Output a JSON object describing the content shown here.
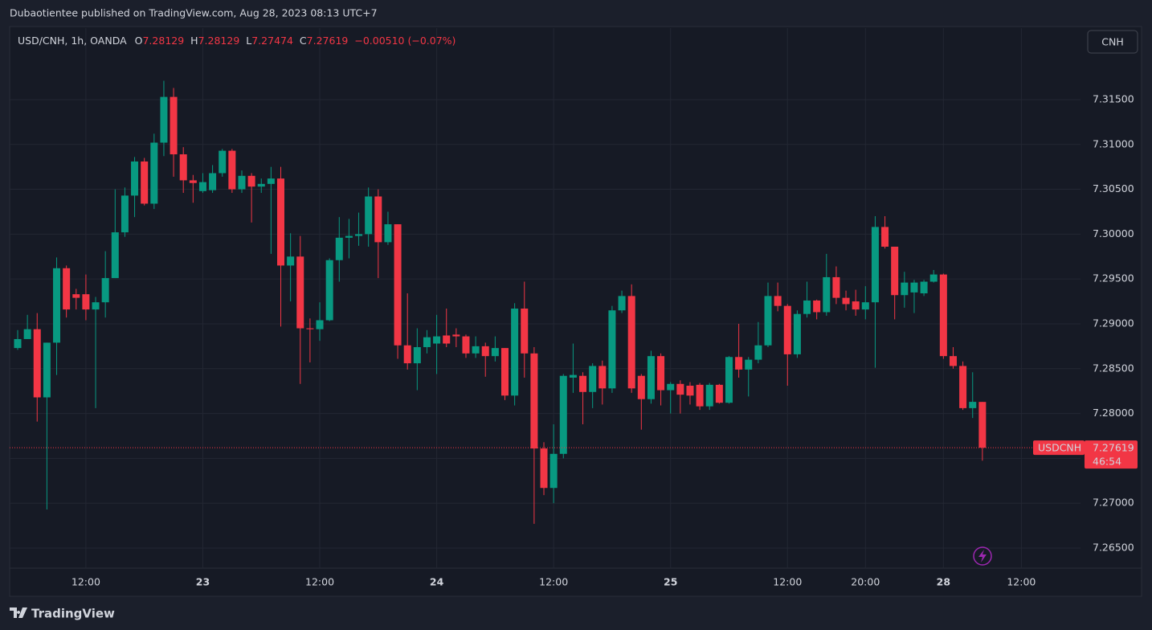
{
  "publisher_line": "Dubaotientee published on TradingView.com, Aug 28, 2023 08:13 UTC+7",
  "footer_brand": "TradingView",
  "currency_button": "CNH",
  "chart_data": {
    "type": "candlestick",
    "title": "USD/CNH, 1h, OANDA",
    "ohlc_labels": [
      "O",
      "H",
      "L",
      "C"
    ],
    "change": "−0.00510 (−0.07%)",
    "price_tag_symbol": "USDCNH",
    "countdown": "46:54",
    "up_color": "#089981",
    "down_color": "#f23645",
    "grid": true,
    "ylim": [
      7.26276,
      7.32297
    ],
    "yticks": [
      {
        "value": 7.265,
        "label": "7.26500"
      },
      {
        "value": 7.27,
        "label": "7.27000"
      },
      {
        "value": 7.275,
        "label": "7.27500"
      },
      {
        "value": 7.28,
        "label": "7.28000"
      },
      {
        "value": 7.285,
        "label": "7.28500"
      },
      {
        "value": 7.29,
        "label": "7.29000"
      },
      {
        "value": 7.295,
        "label": "7.29500"
      },
      {
        "value": 7.3,
        "label": "7.30000"
      },
      {
        "value": 7.305,
        "label": "7.30500"
      },
      {
        "value": 7.31,
        "label": "7.31000"
      },
      {
        "value": 7.315,
        "label": "7.31500"
      }
    ],
    "categories": [
      null,
      null,
      null,
      null,
      null,
      null,
      null,
      "12:00",
      null,
      null,
      null,
      null,
      null,
      null,
      null,
      null,
      null,
      null,
      null,
      "23",
      null,
      null,
      null,
      null,
      null,
      null,
      null,
      null,
      null,
      null,
      null,
      "12:00",
      null,
      null,
      null,
      null,
      null,
      null,
      null,
      null,
      null,
      null,
      null,
      "24",
      null,
      null,
      null,
      null,
      null,
      null,
      null,
      null,
      null,
      null,
      null,
      "12:00",
      null,
      null,
      null,
      null,
      null,
      null,
      null,
      null,
      null,
      null,
      null,
      "25",
      null,
      null,
      null,
      null,
      null,
      null,
      null,
      null,
      null,
      null,
      null,
      "12:00",
      null,
      null,
      null,
      null,
      null,
      null,
      null,
      "20:00",
      null,
      null,
      null,
      null,
      null,
      null,
      null,
      "28",
      null,
      null,
      null,
      null,
      null,
      null,
      null,
      "12:00"
    ],
    "open": [
      7.2873,
      7.2883,
      7.2894,
      7.2818,
      7.2879,
      7.2962,
      7.2933,
      7.2933,
      7.2916,
      7.2924,
      7.2951,
      7.3002,
      7.3043,
      7.3081,
      7.3034,
      7.3102,
      7.3153,
      7.3089,
      7.306,
      7.3048,
      7.3049,
      7.3068,
      7.3093,
      7.305,
      7.3065,
      7.3053,
      7.3056,
      7.3062,
      7.2965,
      7.2975,
      7.2895,
      7.2894,
      7.2904,
      7.2971,
      7.2996,
      7.2998,
      7.3,
      7.3042,
      7.2991,
      7.3011,
      7.2876,
      7.2856,
      7.2874,
      7.2878,
      7.2887,
      7.2888,
      7.2886,
      7.2867,
      7.2875,
      7.2864,
      7.2873,
      7.282,
      7.2917,
      7.2867,
      7.2761,
      7.2717,
      7.2755,
      7.284,
      7.2842,
      7.2824,
      7.2853,
      7.2828,
      7.2915,
      7.2931,
      7.2842,
      7.2816,
      7.2864,
      7.2826,
      7.2833,
      7.2831,
      7.2832,
      7.2808,
      7.2832,
      7.2812,
      7.2863,
      7.2849,
      7.286,
      7.2876,
      7.2931,
      7.292,
      7.2866,
      7.2911,
      7.2926,
      7.2913,
      7.2952,
      7.2929,
      7.2925,
      7.2916,
      7.2924,
      7.3008,
      7.2986,
      7.2932,
      7.2935,
      7.2934,
      7.2947,
      7.2955,
      7.2864,
      7.2853,
      7.2806,
      7.28129,
      null,
      null,
      null,
      null
    ],
    "high": [
      7.2893,
      7.291,
      7.2912,
      7.2879,
      7.2974,
      7.2965,
      7.2939,
      7.2955,
      7.293,
      7.2981,
      7.305,
      7.3052,
      7.3086,
      7.3085,
      7.3112,
      7.3171,
      7.3163,
      7.3097,
      7.3066,
      7.3068,
      7.3077,
      7.3095,
      7.3095,
      7.3071,
      7.3068,
      7.3062,
      7.3075,
      7.3075,
      7.3001,
      7.2998,
      7.2906,
      7.2924,
      7.2973,
      7.3019,
      7.3017,
      7.3024,
      7.3052,
      7.305,
      7.3025,
      7.3011,
      7.2934,
      7.2895,
      7.2893,
      7.291,
      7.2917,
      7.2895,
      7.2888,
      7.2886,
      7.2879,
      7.2886,
      7.2873,
      7.2923,
      7.2947,
      7.2874,
      7.2768,
      7.2788,
      7.2844,
      7.2878,
      7.2846,
      7.2856,
      7.2859,
      7.292,
      7.2937,
      7.2944,
      7.2844,
      7.287,
      7.2867,
      7.2835,
      7.2837,
      7.2835,
      7.2834,
      7.2834,
      7.2833,
      7.2864,
      7.29,
      7.2863,
      7.2902,
      7.2946,
      7.2946,
      7.2922,
      7.2915,
      7.2947,
      7.2927,
      7.2978,
      7.2964,
      7.2937,
      7.2938,
      7.2942,
      7.302,
      7.302,
      7.2986,
      7.2958,
      7.2949,
      7.2949,
      7.296,
      7.2956,
      7.2874,
      7.2858,
      7.2846,
      7.28129,
      null,
      null,
      null,
      null
    ],
    "low": [
      7.2871,
      7.2883,
      7.2791,
      7.2693,
      7.2843,
      7.2907,
      7.2916,
      7.2904,
      7.2806,
      7.2907,
      7.2951,
      7.2997,
      7.3019,
      7.3032,
      7.3028,
      7.3087,
      7.3064,
      7.3046,
      7.3035,
      7.3046,
      7.3046,
      7.3064,
      7.3046,
      7.3046,
      7.3013,
      7.3046,
      7.2978,
      7.2897,
      7.2925,
      7.2833,
      7.2857,
      7.2881,
      7.2903,
      7.2947,
      7.2973,
      7.2987,
      7.2986,
      7.2951,
      7.2988,
      7.2861,
      7.2849,
      7.2826,
      7.2867,
      7.2844,
      7.2874,
      7.2874,
      7.2862,
      7.2862,
      7.2841,
      7.2858,
      7.2815,
      7.2809,
      7.284,
      7.2677,
      7.2709,
      7.27,
      7.275,
      7.2823,
      7.2788,
      7.2806,
      7.281,
      7.2823,
      7.2912,
      7.2823,
      7.2782,
      7.2811,
      7.2809,
      7.28,
      7.28,
      7.281,
      7.2804,
      7.2804,
      7.2811,
      7.2811,
      7.284,
      7.2819,
      7.2856,
      7.2874,
      7.2914,
      7.2831,
      7.2862,
      7.2907,
      7.2905,
      7.2909,
      7.2922,
      7.2915,
      7.2909,
      7.2905,
      7.2851,
      7.2984,
      7.2905,
      7.2918,
      7.2912,
      7.2931,
      7.2946,
      7.2861,
      7.285,
      7.2804,
      7.2795,
      7.27474,
      null,
      null,
      null,
      null
    ],
    "close": [
      7.2883,
      7.2894,
      7.2818,
      7.2879,
      7.2962,
      7.2916,
      7.2929,
      7.2916,
      7.2924,
      7.2951,
      7.3002,
      7.3043,
      7.3081,
      7.3034,
      7.3102,
      7.3153,
      7.3089,
      7.306,
      7.3057,
      7.3058,
      7.3068,
      7.3093,
      7.305,
      7.3065,
      7.3053,
      7.3056,
      7.3062,
      7.2965,
      7.2975,
      7.2895,
      7.2894,
      7.2904,
      7.2971,
      7.2996,
      7.2998,
      7.3,
      7.3042,
      7.2991,
      7.3011,
      7.2876,
      7.2856,
      7.2874,
      7.2885,
      7.2886,
      7.2878,
      7.2886,
      7.2867,
      7.2875,
      7.2864,
      7.2873,
      7.282,
      7.2917,
      7.2867,
      7.2761,
      7.2717,
      7.2755,
      7.2842,
      7.2843,
      7.2824,
      7.2853,
      7.2828,
      7.2915,
      7.2931,
      7.2828,
      7.2816,
      7.2864,
      7.2826,
      7.2833,
      7.2821,
      7.282,
      7.2808,
      7.2832,
      7.2812,
      7.2863,
      7.2849,
      7.286,
      7.2876,
      7.2931,
      7.292,
      7.2866,
      7.2911,
      7.2926,
      7.2913,
      7.2952,
      7.2929,
      7.2922,
      7.2916,
      7.2924,
      7.3008,
      7.2986,
      7.2932,
      7.2946,
      7.2946,
      7.2947,
      7.2955,
      7.2864,
      7.2853,
      7.2806,
      7.2813,
      7.27619,
      null,
      null,
      null,
      null
    ]
  }
}
